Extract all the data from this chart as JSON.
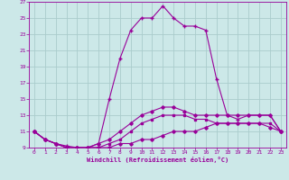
{
  "xlabel": "Windchill (Refroidissement éolien,°C)",
  "background_color": "#cce8e8",
  "grid_color": "#aacccc",
  "line_color": "#990099",
  "xmin": -0.5,
  "xmax": 23.5,
  "ymin": 9,
  "ymax": 27,
  "yticks": [
    9,
    11,
    13,
    15,
    17,
    19,
    21,
    23,
    25,
    27
  ],
  "xticks": [
    0,
    1,
    2,
    3,
    4,
    5,
    6,
    7,
    8,
    9,
    10,
    11,
    12,
    13,
    14,
    15,
    16,
    17,
    18,
    19,
    20,
    21,
    22,
    23
  ],
  "series": [
    {
      "x": [
        0,
        1,
        2,
        3,
        4,
        5,
        6,
        7,
        8,
        9,
        10,
        11,
        12,
        13,
        14,
        15,
        16,
        17,
        18,
        19,
        20,
        21,
        22,
        23
      ],
      "y": [
        11,
        10,
        9.5,
        9.2,
        9,
        9,
        9.5,
        15,
        20,
        23.5,
        25,
        25,
        26.5,
        25,
        24,
        24,
        23.5,
        17.5,
        13,
        12.5,
        13,
        13,
        13,
        11
      ],
      "marker": "+",
      "markersize": 3,
      "linewidth": 0.8,
      "linestyle": "-"
    },
    {
      "x": [
        0,
        1,
        2,
        3,
        4,
        5,
        6,
        7,
        8,
        9,
        10,
        11,
        12,
        13,
        14,
        15,
        16,
        17,
        18,
        19,
        20,
        21,
        22,
        23
      ],
      "y": [
        11,
        10,
        9.5,
        9,
        9,
        9,
        9.5,
        10,
        11,
        12,
        13,
        13.5,
        14,
        14,
        13.5,
        13,
        13,
        13,
        13,
        13,
        13,
        13,
        13,
        11
      ],
      "marker": "D",
      "markersize": 1.8,
      "linewidth": 0.8,
      "linestyle": "-"
    },
    {
      "x": [
        0,
        1,
        2,
        3,
        4,
        5,
        6,
        7,
        8,
        9,
        10,
        11,
        12,
        13,
        14,
        15,
        16,
        17,
        18,
        19,
        20,
        21,
        22,
        23
      ],
      "y": [
        11,
        10,
        9.5,
        9,
        9,
        9,
        9,
        9.5,
        10,
        11,
        12,
        12.5,
        13,
        13,
        13,
        12.5,
        12.5,
        12,
        12,
        12,
        12,
        12,
        12,
        11
      ],
      "marker": "s",
      "markersize": 1.8,
      "linewidth": 0.8,
      "linestyle": "-"
    },
    {
      "x": [
        0,
        1,
        2,
        3,
        4,
        5,
        6,
        7,
        8,
        9,
        10,
        11,
        12,
        13,
        14,
        15,
        16,
        17,
        18,
        19,
        20,
        21,
        22,
        23
      ],
      "y": [
        11,
        10,
        9.5,
        9,
        9,
        9,
        9,
        9,
        9.5,
        9.5,
        10,
        10,
        10.5,
        11,
        11,
        11,
        11.5,
        12,
        12,
        12,
        12,
        12,
        11.5,
        11
      ],
      "marker": "D",
      "markersize": 1.8,
      "linewidth": 0.8,
      "linestyle": "-"
    }
  ]
}
